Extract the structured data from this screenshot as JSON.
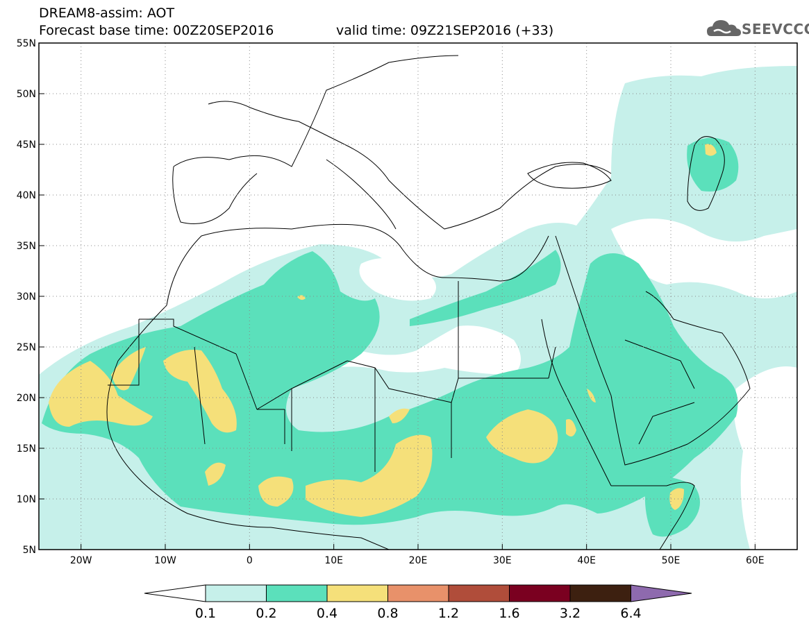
{
  "header": {
    "line1": "DREAM8-assim: AOT",
    "line2": "Forecast base time: 00Z20SEP2016",
    "valid": "valid time: 09Z21SEP2016 (+33)"
  },
  "logo": {
    "text": "SEEVCCC",
    "icon": "cloud-icon"
  },
  "map": {
    "lon_range": [
      -25,
      65
    ],
    "lat_range": [
      5,
      55
    ],
    "lon_ticks": [
      -20,
      -10,
      0,
      10,
      20,
      30,
      40,
      50,
      60
    ],
    "lon_tick_labels": [
      "20W",
      "10W",
      "0",
      "10E",
      "20E",
      "30E",
      "40E",
      "50E",
      "60E"
    ],
    "lat_ticks": [
      55,
      50,
      45,
      40,
      35,
      30,
      25,
      20,
      15,
      10,
      5
    ],
    "lat_tick_labels": [
      "55N",
      "50N",
      "45N",
      "40N",
      "35N",
      "30N",
      "25N",
      "20N",
      "15N",
      "10N",
      "5N"
    ],
    "grid": true,
    "colors": {
      "c01": "#c6f0ea",
      "c02": "#5be0bb",
      "c04": "#f5e07a"
    }
  },
  "colorbar": {
    "levels": [
      "0.1",
      "0.2",
      "0.4",
      "0.8",
      "1.2",
      "1.6",
      "3.2",
      "6.4"
    ],
    "colors": [
      "#ffffff",
      "#c6f0ea",
      "#5be0bb",
      "#f5e07a",
      "#e8916a",
      "#b04d3a",
      "#7a0020",
      "#3d2010",
      "#8e6aae"
    ]
  }
}
